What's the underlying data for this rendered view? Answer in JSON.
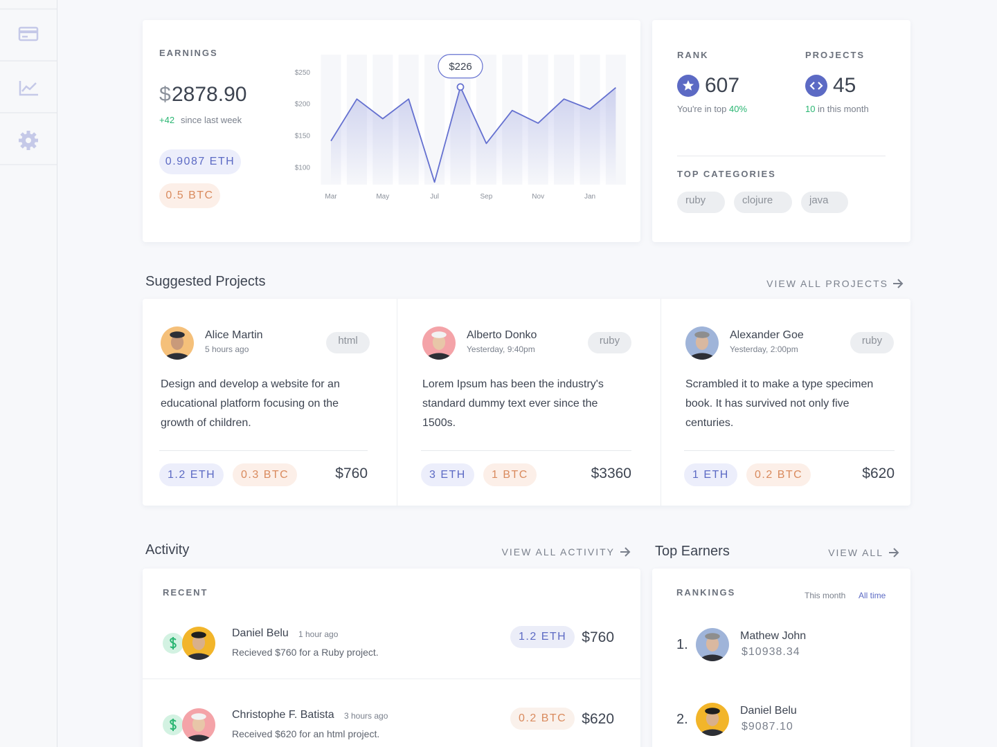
{
  "earnings": {
    "title": "EARNINGS",
    "currency": "$",
    "amount": "2878.90",
    "change": "+42",
    "change_text": "since last week",
    "eth": "0.9087 ETH",
    "btc": "0.5 BTC"
  },
  "chart_data": {
    "type": "line",
    "categories": [
      "Mar",
      null,
      "May",
      null,
      "Jul",
      null,
      "Sep",
      null,
      "Nov",
      null,
      "Jan",
      null
    ],
    "values": [
      141,
      207,
      176,
      207,
      76,
      226,
      137,
      189,
      169,
      207,
      191,
      225
    ],
    "value_labels": [
      null,
      null,
      null,
      null,
      null,
      "$226",
      null,
      null,
      null,
      null,
      null,
      null
    ],
    "color": "#6470d0",
    "ylim": [
      72,
      277
    ],
    "yticks": [
      {
        "value": 250,
        "label": "$250"
      },
      {
        "value": 200,
        "label": "$200"
      },
      {
        "value": 150,
        "label": "$150"
      },
      {
        "value": 100,
        "label": "$100"
      }
    ],
    "grid": false
  },
  "stats": {
    "rank_label": "RANK",
    "rank": "607",
    "rank_note": "You're in top",
    "rank_pct": "40%",
    "projects_label": "PROJECTS",
    "projects": "45",
    "projects_count": "10",
    "projects_note": "in this month",
    "categories_title": "TOP CATEGORIES",
    "categories": [
      "ruby",
      "clojure",
      "java"
    ]
  },
  "suggested": {
    "title": "Suggested Projects",
    "link": "VIEW ALL PROJECTS",
    "projects": [
      {
        "name": "Alice Martin",
        "time": "5 hours ago",
        "tag": "html",
        "description": "Design and develop a website for an educational platform focusing on the growth of children.",
        "eth": "1.2 ETH",
        "btc": "0.3 BTC",
        "price": "$760"
      },
      {
        "name": "Alberto Donko",
        "time": "Yesterday, 9:40pm",
        "tag": "ruby",
        "description": "Lorem Ipsum has been the industry's standard dummy text ever since the 1500s.",
        "eth": "3 ETH",
        "btc": "1 BTC",
        "price": "$3360"
      },
      {
        "name": "Alexander Goe",
        "time": "Yesterday, 2:00pm",
        "tag": "ruby",
        "description": "Scrambled it to make a type specimen book. It has survived not only five centuries.",
        "eth": "1 ETH",
        "btc": "0.2 BTC",
        "price": "$620"
      }
    ]
  },
  "activity": {
    "title": "Activity",
    "link": "VIEW ALL ACTIVITY",
    "section": "RECENT",
    "items": [
      {
        "name": "Daniel Belu",
        "time": "1 hour ago",
        "text": "Recieved $760 for a Ruby project.",
        "tag": "1.2 ETH",
        "tag_color": "#5c6ac4",
        "price": "$760"
      },
      {
        "name": "Christophe F. Batista",
        "time": "3 hours ago",
        "text": "Received  $620 for an html project.",
        "tag": "0.2 BTC",
        "tag_color": "#d98a5d",
        "price": "$620"
      }
    ]
  },
  "earners": {
    "title": "Top Earners",
    "link": "VIEW ALL",
    "section": "RANKINGS",
    "tabs": [
      "This month",
      "All time"
    ],
    "items": [
      {
        "rank": "1.",
        "name": "Mathew John",
        "amount": "$10938.34"
      },
      {
        "rank": "2.",
        "name": "Daniel Belu",
        "amount": "$9087.10"
      }
    ]
  }
}
